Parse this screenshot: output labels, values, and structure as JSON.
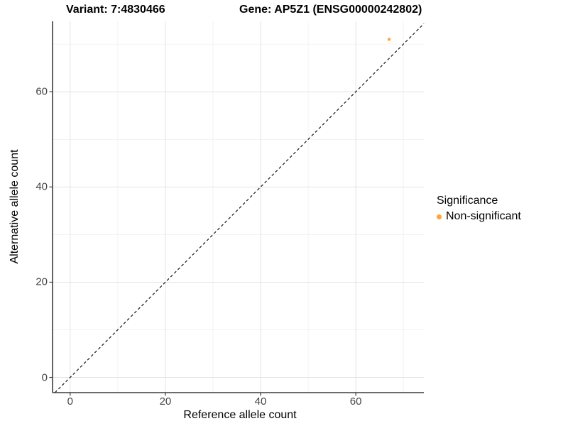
{
  "chart_data": {
    "type": "scatter",
    "title_left": "Variant: 7:4830466",
    "title_right": "Gene: AP5Z1 (ENSG00000242802)",
    "xlabel": "Reference allele count",
    "ylabel": "Alternative allele count",
    "xlim": [
      -3.7,
      74.3
    ],
    "ylim": [
      -3.2,
      74.8
    ],
    "x_major_ticks": [
      0,
      20,
      40,
      60
    ],
    "y_major_ticks": [
      0,
      20,
      40,
      60
    ],
    "x_minor_ticks": [
      10,
      30,
      50,
      70
    ],
    "y_minor_ticks": [
      10,
      30,
      50,
      70
    ],
    "grid": "on",
    "reference_line": {
      "type": "identity y=x",
      "style": "dashed",
      "color": "#000000"
    },
    "series": [
      {
        "name": "Non-significant",
        "color": "#FFA435",
        "points": [
          [
            67,
            71
          ]
        ]
      }
    ],
    "legend": {
      "title": "Significance",
      "position": "right",
      "entries": [
        {
          "label": "Non-significant",
          "color": "#FFA435"
        }
      ]
    },
    "colors": {
      "background": "#FFFFFF",
      "major_grid": "#E3E3E3",
      "minor_grid": "#F1F1F1",
      "axis_line": "#3C3C3C",
      "tick_mark": "#3C3C3C",
      "tick_label": "#454545"
    }
  }
}
